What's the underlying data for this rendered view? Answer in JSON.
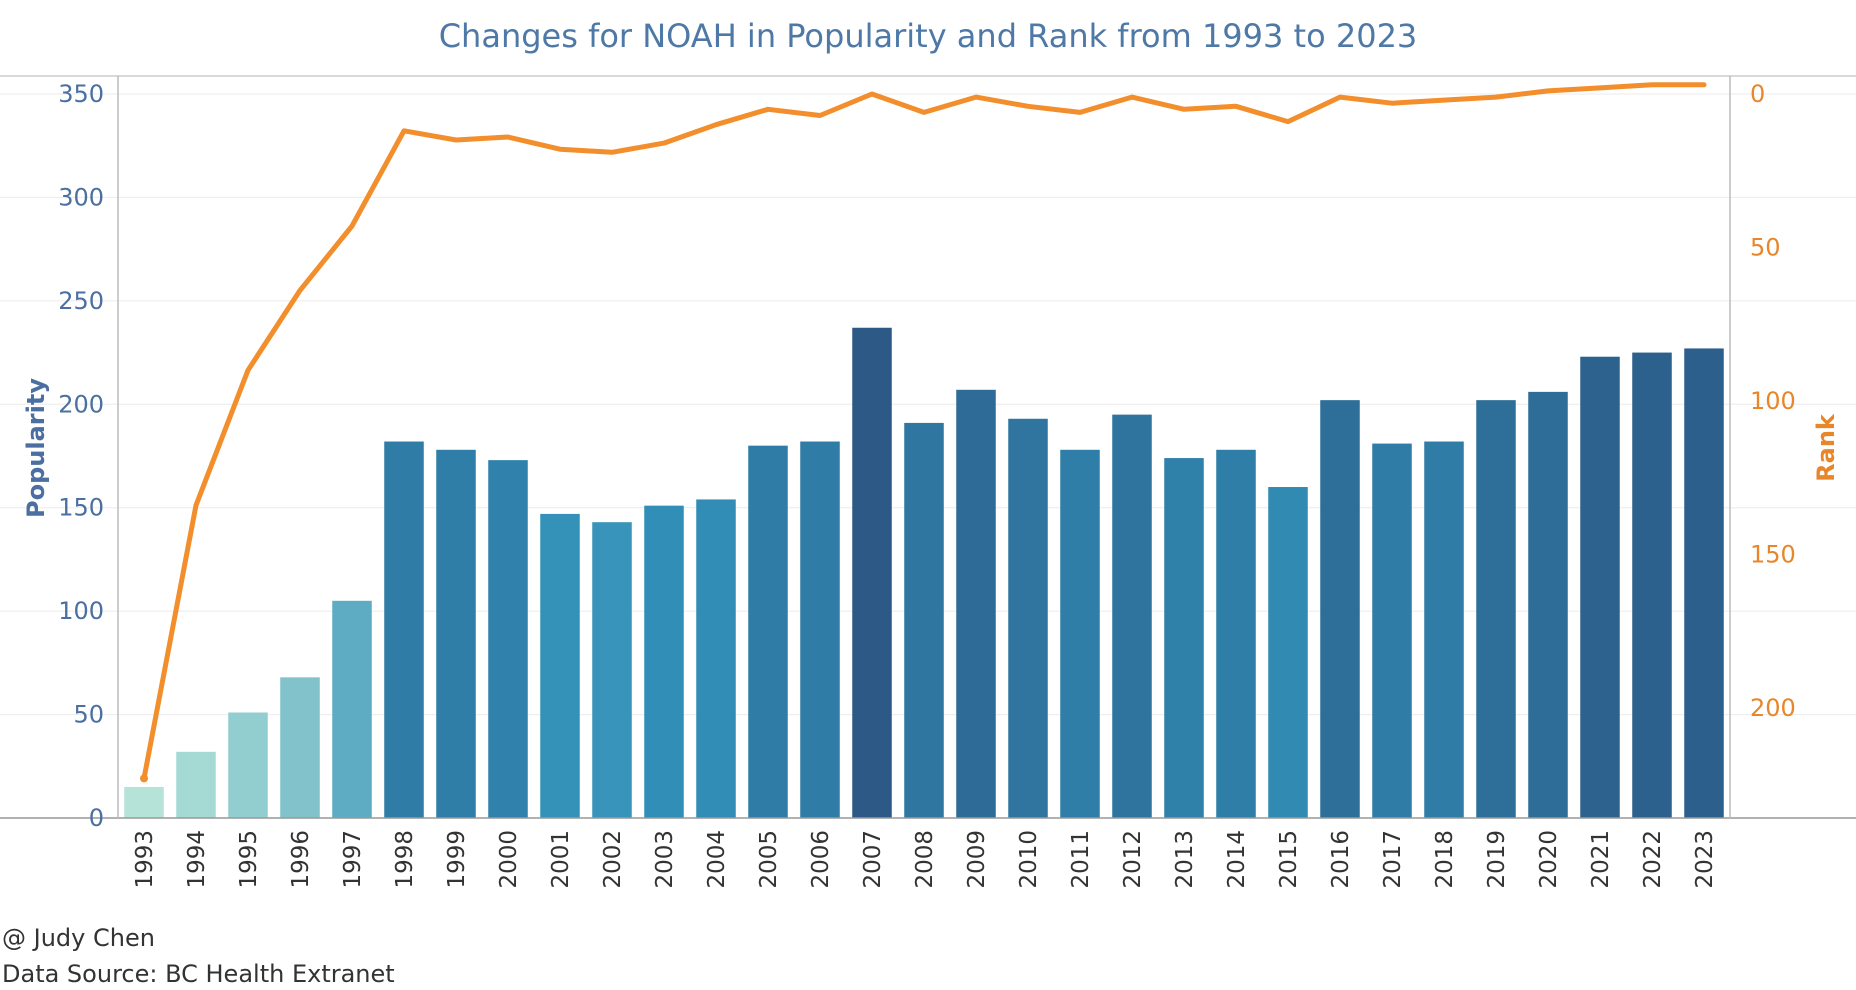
{
  "chart_data": {
    "type": "bar",
    "title": "Changes for NOAH in Popularity and Rank from 1993 to 2023",
    "categories": [
      "1993",
      "1994",
      "1995",
      "1996",
      "1997",
      "1998",
      "1999",
      "2000",
      "2001",
      "2002",
      "2003",
      "2004",
      "2005",
      "2006",
      "2007",
      "2008",
      "2009",
      "2010",
      "2011",
      "2012",
      "2013",
      "2014",
      "2015",
      "2016",
      "2017",
      "2018",
      "2019",
      "2020",
      "2021",
      "2022",
      "2023"
    ],
    "series": [
      {
        "name": "Popularity",
        "type": "bar",
        "axis": "left",
        "values": [
          15,
          32,
          51,
          68,
          105,
          182,
          178,
          173,
          147,
          143,
          151,
          154,
          180,
          182,
          237,
          191,
          207,
          193,
          178,
          195,
          174,
          178,
          160,
          202,
          181,
          182,
          202,
          206,
          223,
          225,
          227
        ]
      },
      {
        "name": "Rank",
        "type": "line",
        "axis": "right",
        "values": [
          223,
          134,
          90,
          64,
          43,
          12,
          15,
          14,
          18,
          19,
          16,
          10,
          5,
          7,
          0,
          6,
          1,
          4,
          6,
          1,
          5,
          4,
          9,
          1,
          3,
          2,
          1,
          -1,
          -2,
          -3,
          -3
        ]
      }
    ],
    "left_axis": {
      "label": "Popularity",
      "ylim": [
        0,
        350
      ],
      "ticks": [
        0,
        50,
        100,
        150,
        200,
        250,
        300,
        350
      ]
    },
    "right_axis": {
      "label": "Rank",
      "reversed": true,
      "ylim": [
        0,
        230
      ],
      "ticks": [
        0,
        50,
        100,
        150,
        200
      ]
    },
    "grid": true,
    "colors": {
      "title": "#4e79a7",
      "left_axis": "#4a6fa0",
      "right_axis": "#e8862a",
      "line": "#f28e2b",
      "bar_low": "#b5e3d8",
      "bar_mid": "#3190b8",
      "bar_high": "#2c5784"
    }
  },
  "footer": {
    "author": "@ Judy Chen",
    "source": "Data Source: BC Health Extranet"
  }
}
